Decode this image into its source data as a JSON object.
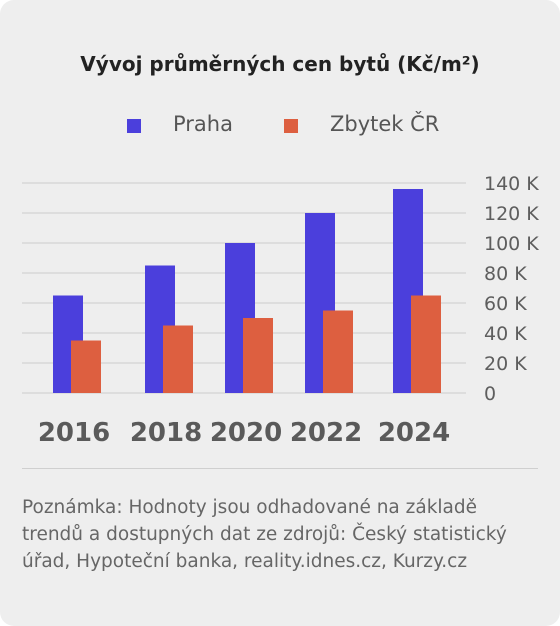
{
  "colors": {
    "praha": "#4b3fdc",
    "zbytek": "#dd5f40",
    "grid": "#cccccc",
    "axis_text": "#5e5e5e",
    "year_text": "#5a5a5a"
  },
  "legend": [
    {
      "label": "Praha",
      "color": "#4b3fdc"
    },
    {
      "label": "Zbytek ČR",
      "color": "#dd5f40"
    }
  ],
  "note": "Poznámka: Hodnoty jsou odhadované na základě trendů a dostupných dat ze zdrojů: Český statistický úřad, Hypoteční banka, reality.idnes.cz, Kurzy.cz",
  "chart_data": {
    "type": "bar",
    "title": "Vývoj průměrných cen bytů  (Kč/m²)",
    "categories": [
      "2016",
      "2018",
      "2020",
      "2022",
      "2024"
    ],
    "series": [
      {
        "name": "Praha",
        "values": [
          65,
          85,
          100,
          120,
          136
        ]
      },
      {
        "name": "Zbytek ČR",
        "values": [
          35,
          45,
          50,
          55,
          65
        ]
      }
    ],
    "xlabel": "",
    "ylabel": "",
    "ylim": [
      0,
      140
    ],
    "yticks": [
      0,
      20,
      40,
      60,
      80,
      100,
      120,
      140
    ],
    "ytick_labels": [
      "0",
      "20 K",
      "40 K",
      "60 K",
      "80 K",
      "100 K",
      "120 K",
      "140 K"
    ],
    "y_axis_position": "right",
    "grid": true,
    "legend_position": "top-center"
  }
}
